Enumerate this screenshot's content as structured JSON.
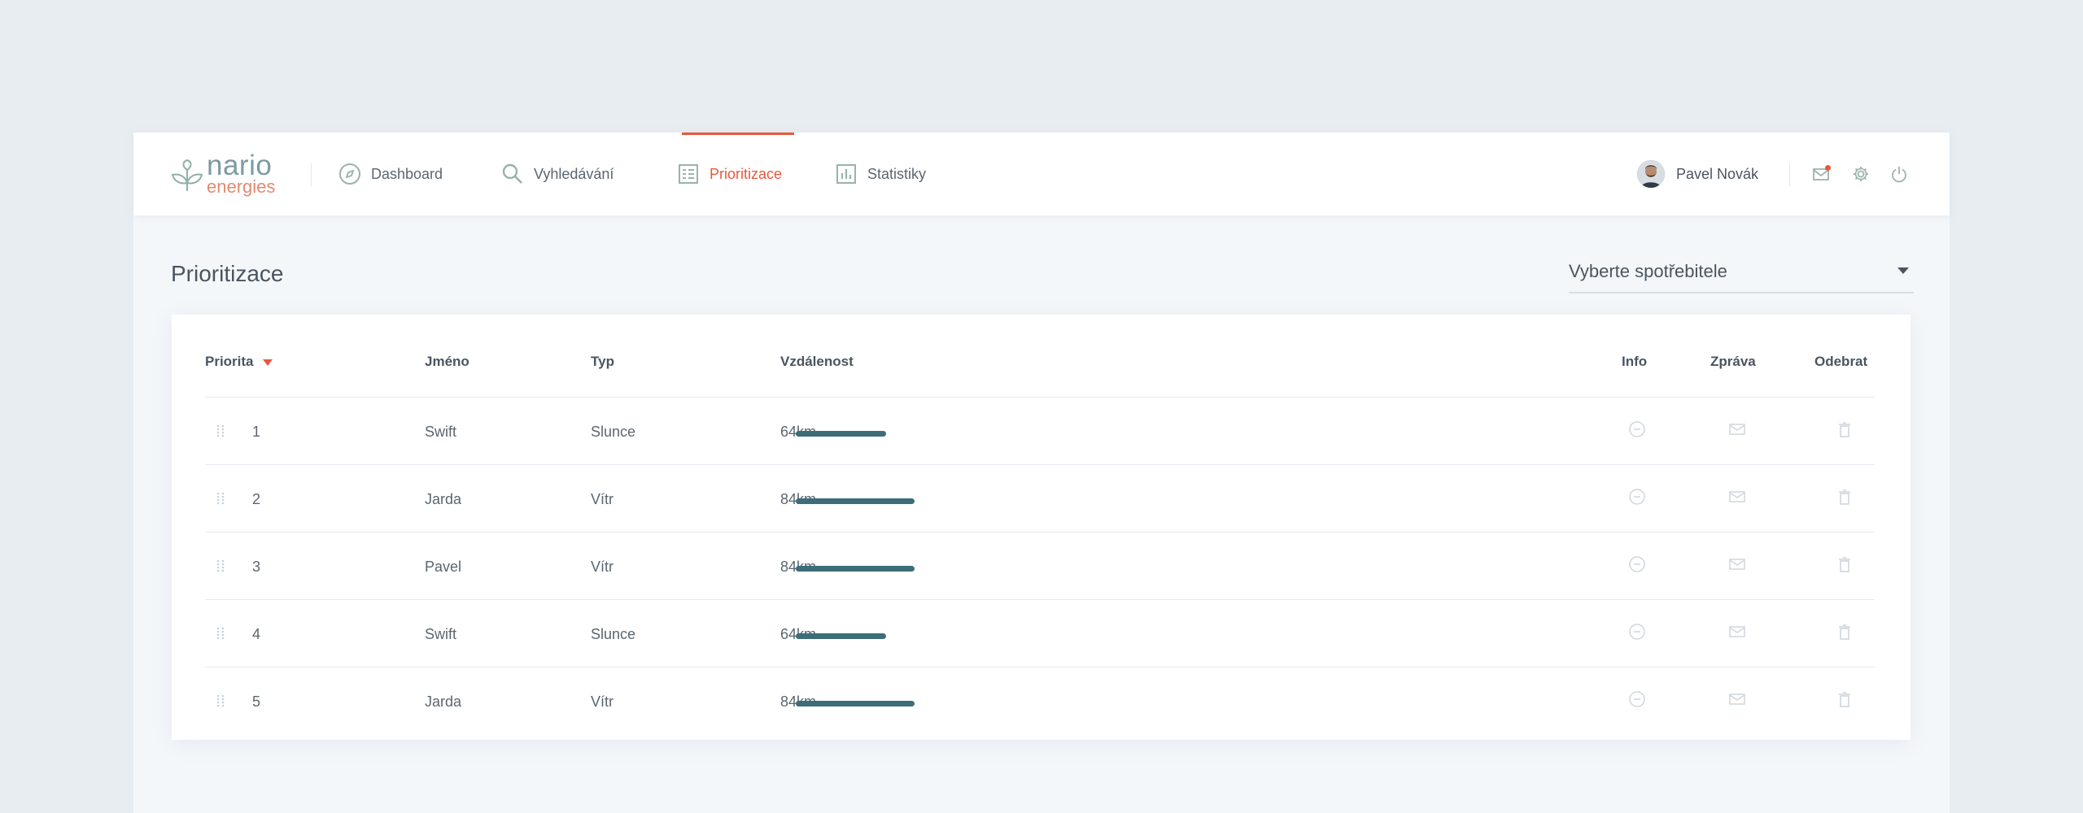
{
  "brand": {
    "top": "nario",
    "bottom": "energies"
  },
  "nav": [
    {
      "label": "Dashboard",
      "icon": "compass-icon",
      "active": false
    },
    {
      "label": "Vyhledávání",
      "icon": "search-icon",
      "active": false
    },
    {
      "label": "Prioritizace",
      "icon": "list-icon",
      "active": true
    },
    {
      "label": "Statistiky",
      "icon": "bar-chart-icon",
      "active": false
    }
  ],
  "user": {
    "name": "Pavel Novák"
  },
  "page": {
    "title": "Prioritizace"
  },
  "select": {
    "value": "Vyberte spotřebitele"
  },
  "table": {
    "headers": {
      "priority": "Priorita",
      "name": "Jméno",
      "type": "Typ",
      "distance": "Vzdálenost",
      "info": "Info",
      "message": "Zpráva",
      "remove": "Odebrat"
    },
    "max_distance_km": 84,
    "rows": [
      {
        "priority": "1",
        "name": "Swift",
        "type": "Slunce",
        "distance": "64km",
        "distance_km": 64
      },
      {
        "priority": "2",
        "name": "Jarda",
        "type": "Vítr",
        "distance": "84km",
        "distance_km": 84
      },
      {
        "priority": "3",
        "name": "Pavel",
        "type": "Vítr",
        "distance": "84km",
        "distance_km": 84
      },
      {
        "priority": "4",
        "name": "Swift",
        "type": "Slunce",
        "distance": "64km",
        "distance_km": 64
      },
      {
        "priority": "5",
        "name": "Jarda",
        "type": "Vítr",
        "distance": "84km",
        "distance_km": 84
      }
    ]
  },
  "colors": {
    "accent": "#e8583c",
    "bar": "#3d6d78",
    "text": "#4a5560",
    "muted_icon": "#c9d1d7"
  }
}
